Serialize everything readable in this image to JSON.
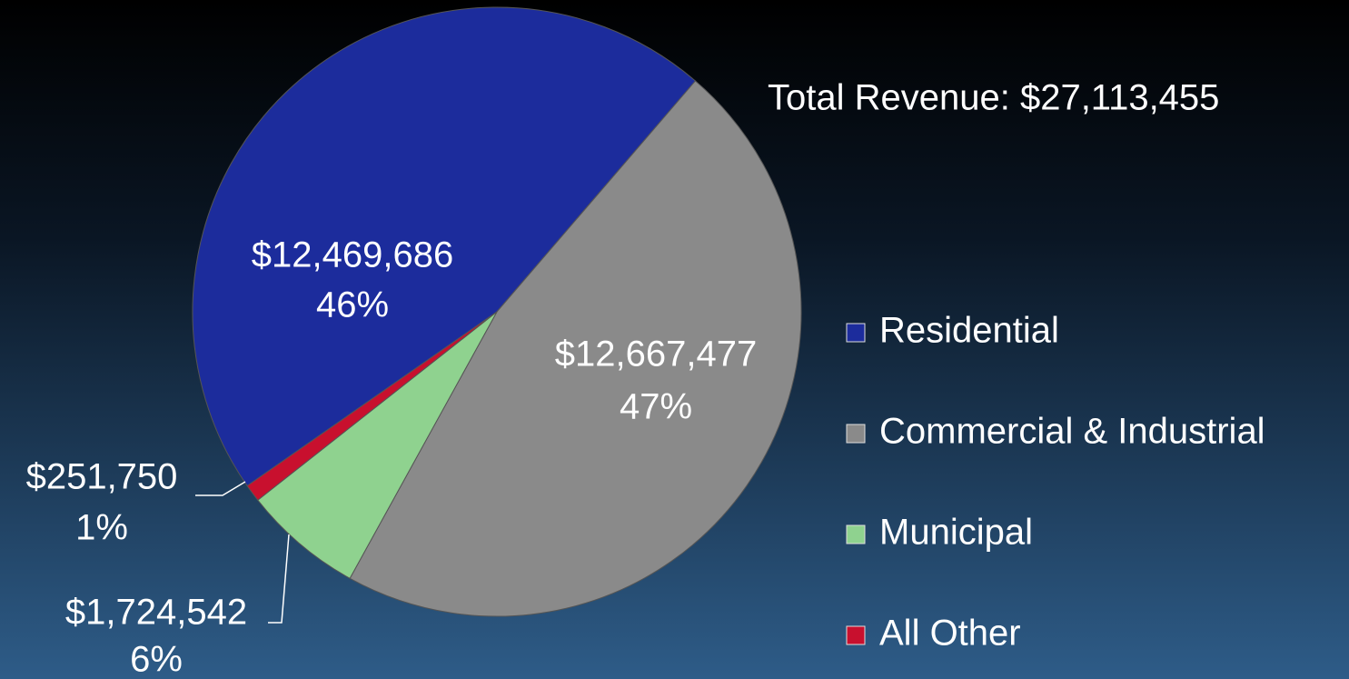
{
  "chart_data": {
    "type": "pie",
    "title": "Total Revenue: $27,113,455",
    "categories": [
      "Residential",
      "Commercial & Industrial",
      "Municipal",
      "All Other"
    ],
    "values": [
      12469686,
      12667477,
      1724542,
      251750
    ],
    "value_labels": [
      "$12,469,686",
      "$12,667,477",
      "$1,724,542",
      "$251,750"
    ],
    "percent_labels": [
      "46%",
      "47%",
      "6%",
      "1%"
    ],
    "colors": [
      "#1c2c9c",
      "#8a8a8a",
      "#8fd28f",
      "#c8102e"
    ],
    "legend": "right"
  }
}
